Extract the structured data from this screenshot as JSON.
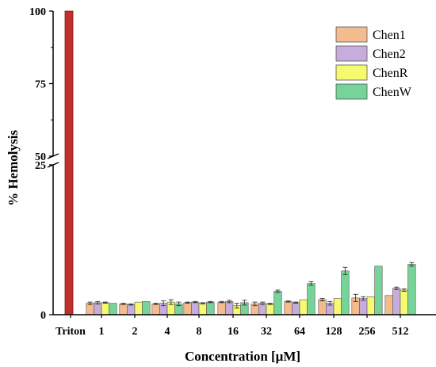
{
  "chart_data": {
    "type": "bar",
    "title": "",
    "xlabel": "Concentration [μM]",
    "ylabel": "% Hemolysis",
    "categories": [
      "Triton",
      "1",
      "2",
      "4",
      "8",
      "16",
      "32",
      "64",
      "128",
      "256",
      "512"
    ],
    "y_axis": {
      "broken": true,
      "break_between": [
        25,
        50
      ],
      "lower_range": [
        0,
        25
      ],
      "upper_range": [
        50,
        100
      ],
      "tick_labels": [
        "0",
        "25",
        "50",
        "75",
        "100"
      ]
    },
    "grid": false,
    "legend_position": "top-right",
    "triton": {
      "value": 100,
      "color": "#c0302a"
    },
    "series": [
      {
        "name": "Chen1",
        "color": "#f4bb8c",
        "values": [
          null,
          1.9,
          1.8,
          1.8,
          2.0,
          2.1,
          1.8,
          2.2,
          2.5,
          2.8,
          3.2
        ],
        "errors": [
          null,
          0.2,
          0.1,
          0.1,
          0.1,
          0.1,
          0.3,
          0.1,
          0.2,
          0.6,
          0.0
        ]
      },
      {
        "name": "Chen2",
        "color": "#c7addb",
        "values": [
          null,
          2.0,
          1.7,
          1.9,
          2.1,
          2.2,
          1.9,
          2.0,
          1.9,
          2.7,
          4.4
        ],
        "errors": [
          null,
          0.2,
          0.1,
          0.4,
          0.1,
          0.2,
          0.2,
          0.1,
          0.3,
          0.3,
          0.2
        ]
      },
      {
        "name": "ChenR",
        "color": "#f6fa6e",
        "values": [
          null,
          2.0,
          2.1,
          2.1,
          1.9,
          1.5,
          1.8,
          2.5,
          2.7,
          3.0,
          4.1
        ],
        "errors": [
          null,
          0.1,
          0.0,
          0.4,
          0.1,
          0.4,
          0.1,
          0.0,
          0.0,
          0.0,
          0.2
        ]
      },
      {
        "name": "ChenW",
        "color": "#76d498",
        "values": [
          null,
          1.9,
          2.2,
          1.8,
          2.1,
          2.0,
          3.9,
          5.2,
          7.3,
          8.1,
          8.4
        ],
        "errors": [
          null,
          0.0,
          0.0,
          0.3,
          0.1,
          0.4,
          0.2,
          0.3,
          0.6,
          0.0,
          0.3
        ]
      }
    ]
  }
}
